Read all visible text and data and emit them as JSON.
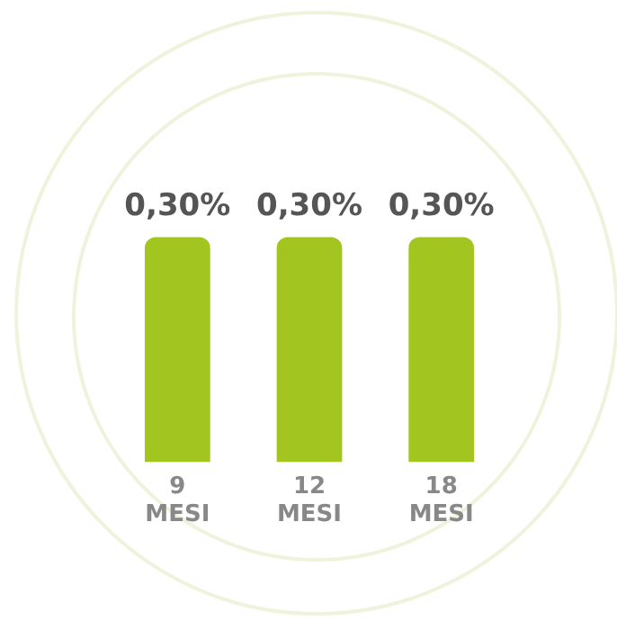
{
  "chart_data": {
    "type": "bar",
    "categories": [
      "9 MESI",
      "12 MESI",
      "18 MESI"
    ],
    "values": [
      0.3,
      0.3,
      0.3
    ],
    "value_labels": [
      "0,30%",
      "0,30%",
      "0,30%"
    ],
    "color": "#a3c520",
    "grid": false,
    "legend": false
  }
}
